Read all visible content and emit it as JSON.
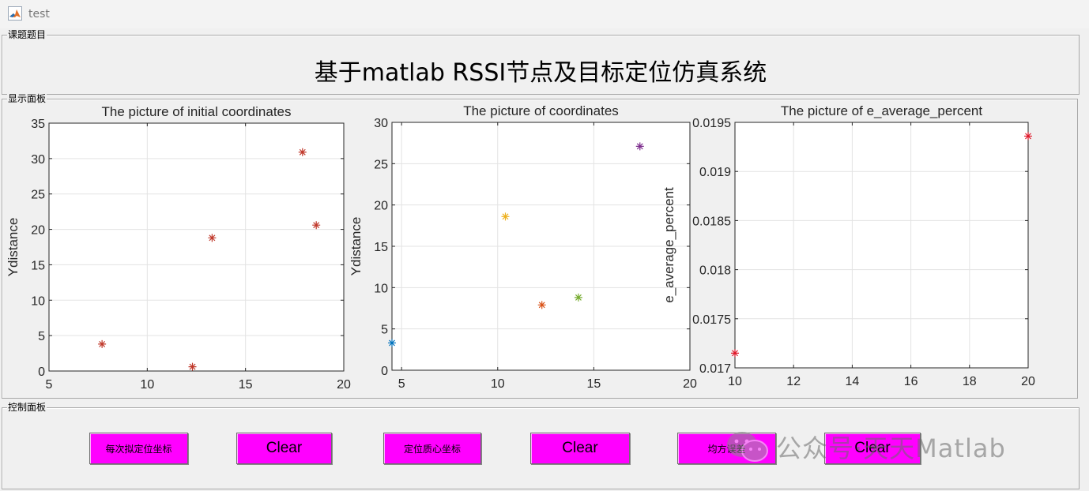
{
  "window": {
    "title": "test"
  },
  "panels": {
    "topic": {
      "label": "课题题目",
      "title": "基于matlab RSSI节点及目标定位仿真系统"
    },
    "display": {
      "label": "显示面板"
    },
    "control": {
      "label": "控制面板"
    }
  },
  "chart_data": [
    {
      "type": "scatter",
      "title": "The picture of initial coordinates",
      "xlabel": "",
      "ylabel": "Ydistance",
      "xlim": [
        5,
        20
      ],
      "ylim": [
        0,
        35
      ],
      "xticks": [
        5,
        10,
        15,
        20
      ],
      "yticks": [
        0,
        5,
        10,
        15,
        20,
        25,
        30,
        35
      ],
      "grid": true,
      "marker": "*",
      "points": [
        {
          "x": 7.7,
          "y": 3.8,
          "color": "#c0392b"
        },
        {
          "x": 12.3,
          "y": 0.6,
          "color": "#c0392b"
        },
        {
          "x": 13.3,
          "y": 18.8,
          "color": "#c0392b"
        },
        {
          "x": 17.9,
          "y": 30.9,
          "color": "#c0392b"
        },
        {
          "x": 18.6,
          "y": 20.6,
          "color": "#c0392b"
        }
      ]
    },
    {
      "type": "scatter",
      "title": "The picture of coordinates",
      "xlabel": "",
      "ylabel": "Ydistance",
      "xlim": [
        4.5,
        20
      ],
      "ylim": [
        0,
        30
      ],
      "xticks": [
        5,
        10,
        15,
        20
      ],
      "yticks": [
        0,
        5,
        10,
        15,
        20,
        25,
        30
      ],
      "grid": true,
      "marker": "*",
      "points": [
        {
          "x": 4.5,
          "y": 3.3,
          "color": "#0072bd"
        },
        {
          "x": 10.4,
          "y": 18.6,
          "color": "#edb120"
        },
        {
          "x": 12.3,
          "y": 7.9,
          "color": "#d95319"
        },
        {
          "x": 14.2,
          "y": 8.8,
          "color": "#77ac30"
        },
        {
          "x": 17.4,
          "y": 27.1,
          "color": "#7e2f8e"
        }
      ]
    },
    {
      "type": "scatter",
      "title": "The picture of e_average_percent",
      "xlabel": "",
      "ylabel": "e_average_percent",
      "xlim": [
        10,
        20
      ],
      "ylim": [
        0.017,
        0.0195
      ],
      "xticks": [
        10,
        12,
        14,
        16,
        18,
        20
      ],
      "yticks": [
        0.017,
        0.0175,
        0.018,
        0.0185,
        0.019,
        0.0195
      ],
      "grid": true,
      "marker": "*",
      "points": [
        {
          "x": 10,
          "y": 0.01715,
          "color": "#e0192b"
        },
        {
          "x": 20,
          "y": 0.01936,
          "color": "#e0192b"
        }
      ]
    }
  ],
  "buttons": [
    {
      "label": "每次拟定位坐标"
    },
    {
      "label": "Clear"
    },
    {
      "label": "定位质心坐标"
    },
    {
      "label": "Clear"
    },
    {
      "label": "均方误差"
    },
    {
      "label": "Clear"
    }
  ],
  "watermark": {
    "text": "公众号·天天Matlab"
  }
}
